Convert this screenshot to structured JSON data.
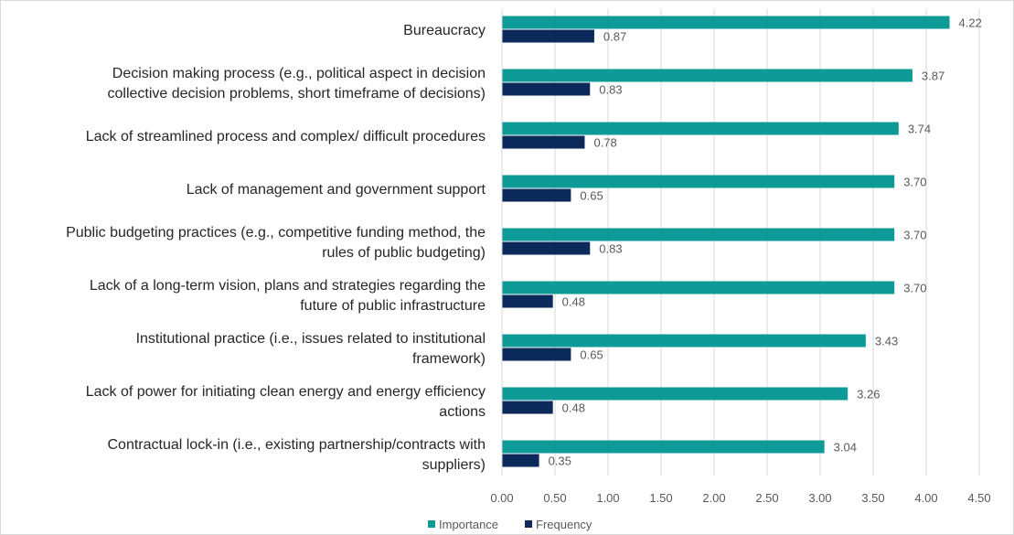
{
  "chart_data": {
    "type": "bar",
    "orientation": "horizontal",
    "categories": [
      [
        "Bureaucracy"
      ],
      [
        "Decision making process (e.g., political aspect in decision",
        "collective decision problems, short timeframe of decisions)"
      ],
      [
        "Lack of streamlined process and complex/ difficult procedures"
      ],
      [
        "Lack of management and government support"
      ],
      [
        "Public budgeting practices (e.g., competitive funding method, the",
        "rules of public budgeting)"
      ],
      [
        "Lack of a long-term vision, plans and strategies regarding the",
        "future of public infrastructure"
      ],
      [
        "Institutional practice (i.e., issues related to institutional",
        "framework)"
      ],
      [
        "Lack of power for initiating clean energy and energy efficiency",
        "actions"
      ],
      [
        "Contractual lock-in (i.e., existing partnership/contracts with",
        "suppliers)"
      ]
    ],
    "series": [
      {
        "name": "Importance",
        "color": "#0e9a96",
        "values": [
          4.22,
          3.87,
          3.74,
          3.7,
          3.7,
          3.7,
          3.43,
          3.26,
          3.04
        ],
        "labels": [
          "4.22",
          "3.87",
          "3.74",
          "3.70",
          "3.70",
          "3.70",
          "3.43",
          "3.26",
          "3.04"
        ]
      },
      {
        "name": "Frequency",
        "color": "#0b2a5b",
        "values": [
          0.87,
          0.83,
          0.78,
          0.65,
          0.83,
          0.48,
          0.65,
          0.48,
          0.35
        ],
        "labels": [
          "0.87",
          "0.83",
          "0.78",
          "0.65",
          "0.83",
          "0.48",
          "0.65",
          "0.48",
          "0.35"
        ]
      }
    ],
    "xlim": [
      0,
      4.5
    ],
    "xticks": [
      "0.00",
      "0.50",
      "1.00",
      "1.50",
      "2.00",
      "2.50",
      "3.00",
      "3.50",
      "4.00",
      "4.50"
    ],
    "title": "",
    "xlabel": "",
    "ylabel": "",
    "grid": "vertical",
    "legend": "bottom-center"
  }
}
